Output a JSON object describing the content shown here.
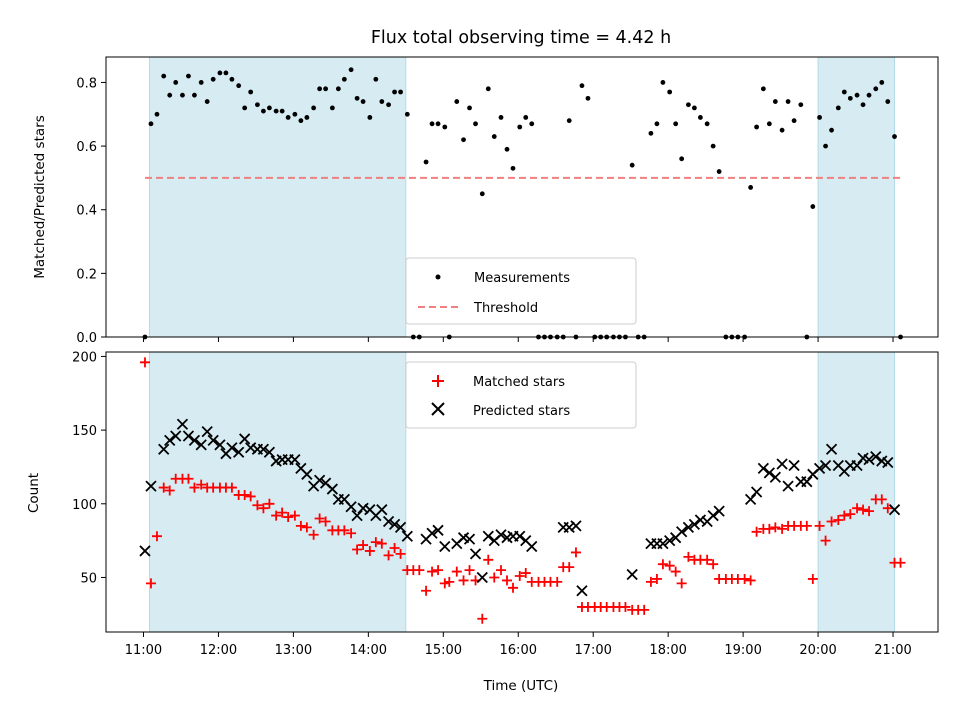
{
  "chart_data": {
    "type": "scatter",
    "title": "Flux total observing time = 4.42 h",
    "xlabel": "Time (UTC)",
    "x_ticks": [
      "11:00",
      "12:00",
      "13:00",
      "14:00",
      "15:00",
      "16:00",
      "17:00",
      "18:00",
      "19:00",
      "20:00",
      "21:00"
    ],
    "xlim_hours": [
      10.5,
      21.6
    ],
    "shaded_windows_hours": [
      [
        11.08,
        14.5
      ],
      [
        20.0,
        21.02
      ]
    ],
    "colors": {
      "shade": "#add8e6",
      "threshold": "#f08080",
      "matched": "#ff0000",
      "predicted": "#000000",
      "measurements": "#000000"
    },
    "top": {
      "ylabel": "Matched/Predicted stars",
      "ylim": [
        0.0,
        0.88
      ],
      "y_ticks": [
        "0.0",
        "0.2",
        "0.4",
        "0.6",
        "0.8"
      ],
      "legend": [
        "Measurements",
        "Threshold"
      ],
      "legend_position": "lower center",
      "threshold": 0.5,
      "measurements": [
        [
          11.02,
          0.0
        ],
        [
          11.1,
          0.67
        ],
        [
          11.18,
          0.7
        ],
        [
          11.27,
          0.82
        ],
        [
          11.35,
          0.76
        ],
        [
          11.43,
          0.8
        ],
        [
          11.52,
          0.76
        ],
        [
          11.6,
          0.82
        ],
        [
          11.68,
          0.76
        ],
        [
          11.77,
          0.8
        ],
        [
          11.85,
          0.74
        ],
        [
          11.93,
          0.81
        ],
        [
          12.02,
          0.83
        ],
        [
          12.1,
          0.83
        ],
        [
          12.18,
          0.81
        ],
        [
          12.27,
          0.79
        ],
        [
          12.35,
          0.72
        ],
        [
          12.43,
          0.77
        ],
        [
          12.52,
          0.73
        ],
        [
          12.6,
          0.71
        ],
        [
          12.68,
          0.72
        ],
        [
          12.77,
          0.71
        ],
        [
          12.85,
          0.71
        ],
        [
          12.93,
          0.69
        ],
        [
          13.02,
          0.7
        ],
        [
          13.1,
          0.68
        ],
        [
          13.18,
          0.69
        ],
        [
          13.27,
          0.72
        ],
        [
          13.35,
          0.78
        ],
        [
          13.43,
          0.78
        ],
        [
          13.52,
          0.72
        ],
        [
          13.6,
          0.78
        ],
        [
          13.68,
          0.81
        ],
        [
          13.77,
          0.84
        ],
        [
          13.85,
          0.75
        ],
        [
          13.93,
          0.74
        ],
        [
          14.02,
          0.69
        ],
        [
          14.1,
          0.81
        ],
        [
          14.18,
          0.74
        ],
        [
          14.27,
          0.73
        ],
        [
          14.35,
          0.77
        ],
        [
          14.43,
          0.77
        ],
        [
          14.52,
          0.7
        ],
        [
          14.6,
          0.0
        ],
        [
          14.68,
          0.0
        ],
        [
          14.77,
          0.55
        ],
        [
          14.85,
          0.67
        ],
        [
          14.93,
          0.67
        ],
        [
          15.02,
          0.66
        ],
        [
          15.08,
          0.0
        ],
        [
          15.18,
          0.74
        ],
        [
          15.27,
          0.62
        ],
        [
          15.35,
          0.72
        ],
        [
          15.43,
          0.67
        ],
        [
          15.52,
          0.45
        ],
        [
          15.6,
          0.78
        ],
        [
          15.68,
          0.63
        ],
        [
          15.77,
          0.69
        ],
        [
          15.85,
          0.59
        ],
        [
          15.93,
          0.53
        ],
        [
          16.02,
          0.66
        ],
        [
          16.1,
          0.69
        ],
        [
          16.18,
          0.67
        ],
        [
          16.27,
          0.0
        ],
        [
          16.35,
          0.0
        ],
        [
          16.43,
          0.0
        ],
        [
          16.52,
          0.0
        ],
        [
          16.6,
          0.0
        ],
        [
          16.68,
          0.68
        ],
        [
          16.77,
          0.0
        ],
        [
          16.85,
          0.79
        ],
        [
          16.93,
          0.75
        ],
        [
          17.02,
          0.0
        ],
        [
          17.1,
          0.0
        ],
        [
          17.18,
          0.0
        ],
        [
          17.27,
          0.0
        ],
        [
          17.35,
          0.0
        ],
        [
          17.43,
          0.0
        ],
        [
          17.52,
          0.54
        ],
        [
          17.6,
          0.0
        ],
        [
          17.68,
          0.0
        ],
        [
          17.77,
          0.64
        ],
        [
          17.85,
          0.67
        ],
        [
          17.93,
          0.8
        ],
        [
          18.02,
          0.77
        ],
        [
          18.1,
          0.67
        ],
        [
          18.18,
          0.56
        ],
        [
          18.27,
          0.73
        ],
        [
          18.35,
          0.72
        ],
        [
          18.43,
          0.69
        ],
        [
          18.52,
          0.67
        ],
        [
          18.6,
          0.6
        ],
        [
          18.68,
          0.52
        ],
        [
          18.77,
          0.0
        ],
        [
          18.85,
          0.0
        ],
        [
          18.93,
          0.0
        ],
        [
          19.02,
          0.0
        ],
        [
          19.1,
          0.47
        ],
        [
          19.18,
          0.66
        ],
        [
          19.27,
          0.78
        ],
        [
          19.35,
          0.67
        ],
        [
          19.43,
          0.74
        ],
        [
          19.52,
          0.65
        ],
        [
          19.6,
          0.74
        ],
        [
          19.68,
          0.68
        ],
        [
          19.77,
          0.73
        ],
        [
          19.85,
          0.0
        ],
        [
          19.93,
          0.41
        ],
        [
          20.02,
          0.69
        ],
        [
          20.1,
          0.6
        ],
        [
          20.18,
          0.65
        ],
        [
          20.27,
          0.72
        ],
        [
          20.35,
          0.77
        ],
        [
          20.43,
          0.75
        ],
        [
          20.52,
          0.76
        ],
        [
          20.6,
          0.73
        ],
        [
          20.68,
          0.76
        ],
        [
          20.77,
          0.78
        ],
        [
          20.85,
          0.8
        ],
        [
          20.93,
          0.74
        ],
        [
          21.02,
          0.63
        ],
        [
          21.1,
          0.0
        ]
      ]
    },
    "bottom": {
      "ylabel": "Count",
      "ylim": [
        13,
        203
      ],
      "y_ticks": [
        "50",
        "100",
        "150",
        "200"
      ],
      "legend": [
        "Matched stars",
        "Predicted stars"
      ],
      "legend_position": "upper center",
      "matched": [
        [
          11.02,
          196
        ],
        [
          11.1,
          46
        ],
        [
          11.18,
          78
        ],
        [
          11.27,
          111
        ],
        [
          11.35,
          109
        ],
        [
          11.43,
          117
        ],
        [
          11.52,
          117
        ],
        [
          11.6,
          117
        ],
        [
          11.68,
          111
        ],
        [
          11.77,
          113
        ],
        [
          11.85,
          111
        ],
        [
          11.93,
          111
        ],
        [
          12.02,
          111
        ],
        [
          12.1,
          111
        ],
        [
          12.18,
          111
        ],
        [
          12.27,
          106
        ],
        [
          12.35,
          106
        ],
        [
          12.43,
          105
        ],
        [
          12.52,
          99
        ],
        [
          12.6,
          97
        ],
        [
          12.68,
          100
        ],
        [
          12.77,
          92
        ],
        [
          12.85,
          94
        ],
        [
          12.93,
          91
        ],
        [
          13.02,
          92
        ],
        [
          13.1,
          85
        ],
        [
          13.18,
          84
        ],
        [
          13.27,
          79
        ],
        [
          13.35,
          90
        ],
        [
          13.43,
          88
        ],
        [
          13.52,
          82
        ],
        [
          13.6,
          82
        ],
        [
          13.68,
          82
        ],
        [
          13.77,
          80
        ],
        [
          13.85,
          69
        ],
        [
          13.93,
          72
        ],
        [
          14.02,
          68
        ],
        [
          14.1,
          74
        ],
        [
          14.18,
          73
        ],
        [
          14.27,
          65
        ],
        [
          14.35,
          70
        ],
        [
          14.43,
          66
        ],
        [
          14.52,
          55
        ],
        [
          14.6,
          55
        ],
        [
          14.68,
          55
        ],
        [
          14.77,
          41
        ],
        [
          14.85,
          54
        ],
        [
          14.93,
          55
        ],
        [
          15.02,
          46
        ],
        [
          15.08,
          47
        ],
        [
          15.18,
          54
        ],
        [
          15.27,
          48
        ],
        [
          15.35,
          55
        ],
        [
          15.43,
          48
        ],
        [
          15.52,
          22
        ],
        [
          15.6,
          62
        ],
        [
          15.68,
          50
        ],
        [
          15.77,
          55
        ],
        [
          15.85,
          48
        ],
        [
          15.93,
          43
        ],
        [
          16.02,
          51
        ],
        [
          16.1,
          53
        ],
        [
          16.18,
          47
        ],
        [
          16.27,
          47
        ],
        [
          16.35,
          47
        ],
        [
          16.43,
          47
        ],
        [
          16.52,
          47
        ],
        [
          16.6,
          57
        ],
        [
          16.68,
          57
        ],
        [
          16.77,
          67
        ],
        [
          16.85,
          30
        ],
        [
          16.93,
          30
        ],
        [
          17.02,
          30
        ],
        [
          17.1,
          30
        ],
        [
          17.18,
          30
        ],
        [
          17.27,
          30
        ],
        [
          17.35,
          30
        ],
        [
          17.43,
          30
        ],
        [
          17.52,
          28
        ],
        [
          17.6,
          28
        ],
        [
          17.68,
          28
        ],
        [
          17.77,
          47
        ],
        [
          17.85,
          49
        ],
        [
          17.93,
          59
        ],
        [
          18.02,
          58
        ],
        [
          18.1,
          54
        ],
        [
          18.18,
          46
        ],
        [
          18.27,
          64
        ],
        [
          18.35,
          62
        ],
        [
          18.43,
          62
        ],
        [
          18.52,
          62
        ],
        [
          18.6,
          59
        ],
        [
          18.68,
          49
        ],
        [
          18.77,
          49
        ],
        [
          18.85,
          49
        ],
        [
          18.93,
          49
        ],
        [
          19.02,
          49
        ],
        [
          19.1,
          48
        ],
        [
          19.18,
          81
        ],
        [
          19.27,
          83
        ],
        [
          19.35,
          83
        ],
        [
          19.43,
          84
        ],
        [
          19.52,
          83
        ],
        [
          19.6,
          85
        ],
        [
          19.68,
          85
        ],
        [
          19.77,
          85
        ],
        [
          19.85,
          85
        ],
        [
          19.93,
          49
        ],
        [
          20.02,
          85
        ],
        [
          20.1,
          75
        ],
        [
          20.18,
          88
        ],
        [
          20.27,
          89
        ],
        [
          20.35,
          92
        ],
        [
          20.43,
          93
        ],
        [
          20.52,
          97
        ],
        [
          20.6,
          96
        ],
        [
          20.68,
          95
        ],
        [
          20.77,
          103
        ],
        [
          20.85,
          103
        ],
        [
          20.93,
          97
        ],
        [
          21.02,
          60
        ],
        [
          21.1,
          60
        ]
      ],
      "predicted": [
        [
          11.02,
          68
        ],
        [
          11.1,
          112
        ],
        [
          11.27,
          137
        ],
        [
          11.35,
          143
        ],
        [
          11.43,
          146
        ],
        [
          11.52,
          154
        ],
        [
          11.6,
          146
        ],
        [
          11.68,
          143
        ],
        [
          11.77,
          140
        ],
        [
          11.85,
          149
        ],
        [
          11.93,
          143
        ],
        [
          12.02,
          140
        ],
        [
          12.1,
          134
        ],
        [
          12.18,
          138
        ],
        [
          12.27,
          135
        ],
        [
          12.35,
          144
        ],
        [
          12.43,
          138
        ],
        [
          12.52,
          137
        ],
        [
          12.6,
          137
        ],
        [
          12.68,
          135
        ],
        [
          12.77,
          129
        ],
        [
          12.85,
          130
        ],
        [
          12.93,
          130
        ],
        [
          13.02,
          130
        ],
        [
          13.1,
          124
        ],
        [
          13.18,
          120
        ],
        [
          13.27,
          112
        ],
        [
          13.35,
          116
        ],
        [
          13.43,
          114
        ],
        [
          13.52,
          110
        ],
        [
          13.6,
          103
        ],
        [
          13.68,
          103
        ],
        [
          13.77,
          98
        ],
        [
          13.85,
          92
        ],
        [
          13.93,
          97
        ],
        [
          14.02,
          96
        ],
        [
          14.1,
          92
        ],
        [
          14.18,
          96
        ],
        [
          14.27,
          88
        ],
        [
          14.35,
          86
        ],
        [
          14.43,
          84
        ],
        [
          14.52,
          78
        ],
        [
          14.77,
          76
        ],
        [
          14.85,
          80
        ],
        [
          14.93,
          82
        ],
        [
          15.02,
          71
        ],
        [
          15.18,
          73
        ],
        [
          15.27,
          77
        ],
        [
          15.35,
          76
        ],
        [
          15.43,
          66
        ],
        [
          15.52,
          50
        ],
        [
          15.6,
          78
        ],
        [
          15.68,
          75
        ],
        [
          15.77,
          79
        ],
        [
          15.85,
          77
        ],
        [
          15.93,
          78
        ],
        [
          16.02,
          78
        ],
        [
          16.1,
          75
        ],
        [
          16.18,
          71
        ],
        [
          16.6,
          84
        ],
        [
          16.68,
          84
        ],
        [
          16.77,
          85
        ],
        [
          16.85,
          41
        ],
        [
          17.52,
          52
        ],
        [
          17.77,
          73
        ],
        [
          17.85,
          73
        ],
        [
          17.93,
          73
        ],
        [
          18.02,
          75
        ],
        [
          18.1,
          77
        ],
        [
          18.18,
          81
        ],
        [
          18.27,
          84
        ],
        [
          18.35,
          86
        ],
        [
          18.43,
          89
        ],
        [
          18.52,
          88
        ],
        [
          18.6,
          92
        ],
        [
          18.68,
          95
        ],
        [
          19.1,
          103
        ],
        [
          19.18,
          108
        ],
        [
          19.27,
          124
        ],
        [
          19.35,
          121
        ],
        [
          19.43,
          118
        ],
        [
          19.52,
          127
        ],
        [
          19.6,
          112
        ],
        [
          19.68,
          126
        ],
        [
          19.77,
          115
        ],
        [
          19.85,
          115
        ],
        [
          19.93,
          120
        ],
        [
          20.02,
          124
        ],
        [
          20.1,
          126
        ],
        [
          20.18,
          137
        ],
        [
          20.27,
          126
        ],
        [
          20.35,
          122
        ],
        [
          20.43,
          126
        ],
        [
          20.52,
          126
        ],
        [
          20.6,
          131
        ],
        [
          20.68,
          130
        ],
        [
          20.77,
          132
        ],
        [
          20.85,
          129
        ],
        [
          20.93,
          128
        ],
        [
          21.02,
          96
        ]
      ]
    }
  }
}
